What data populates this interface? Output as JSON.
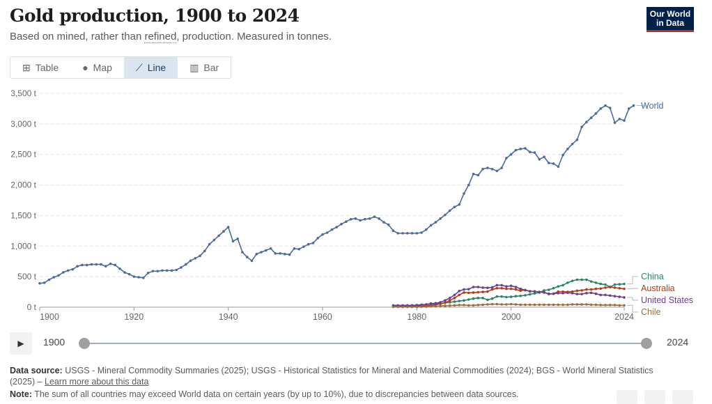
{
  "header": {
    "title": "Gold production, 1900 to 2024",
    "subtitle_pre": "Based on mined, rather than ",
    "subtitle_link": "refined",
    "subtitle_post": ", production. Measured in tonnes.",
    "logo": "Our World in Data"
  },
  "tabs": [
    {
      "label": "Table",
      "icon": "table-icon"
    },
    {
      "label": "Map",
      "icon": "globe-icon"
    },
    {
      "label": "Line",
      "icon": "line-chart-icon",
      "active": true
    },
    {
      "label": "Bar",
      "icon": "bar-chart-icon"
    }
  ],
  "timeline": {
    "start": "1900",
    "end": "2024",
    "start_value": 1900,
    "end_value": 2024
  },
  "footer": {
    "source_label": "Data source:",
    "source_text": " USGS - Mineral Commodity Summaries (2025); USGS - Historical Statistics for Mineral and Material Commodities (2024); BGS - World Mineral Statistics (2025) – ",
    "learn_more": "Learn more about this data",
    "note_label": "Note:",
    "note_text": " The sum of all countries may exceed World data on certain years (by up to 10%), due to discrepancies between data sources."
  },
  "chart_data": {
    "type": "line",
    "title": "Gold production, 1900 to 2024",
    "ylabel": "tonnes",
    "ylim": [
      0,
      3500
    ],
    "xlim": [
      1900,
      2024
    ],
    "yticks": [
      {
        "v": 0,
        "label": "0 t"
      },
      {
        "v": 500,
        "label": "500 t"
      },
      {
        "v": 1000,
        "label": "1,000 t"
      },
      {
        "v": 1500,
        "label": "1,500 t"
      },
      {
        "v": 2000,
        "label": "2,000 t"
      },
      {
        "v": 2500,
        "label": "2,500 t"
      },
      {
        "v": 3000,
        "label": "3,000 t"
      },
      {
        "v": 3500,
        "label": "3,500 t"
      }
    ],
    "xticks": [
      {
        "v": 1900,
        "label": "1900"
      },
      {
        "v": 1920,
        "label": "1920"
      },
      {
        "v": 1940,
        "label": "1940"
      },
      {
        "v": 1960,
        "label": "1960"
      },
      {
        "v": 1980,
        "label": "1980"
      },
      {
        "v": 2000,
        "label": "2000"
      },
      {
        "v": 2024,
        "label": "2024"
      }
    ],
    "series": [
      {
        "name": "World",
        "color": "#4c6a9c",
        "start": 1900,
        "values": [
          390,
          400,
          450,
          490,
          520,
          570,
          600,
          620,
          670,
          690,
          690,
          700,
          700,
          700,
          670,
          710,
          690,
          630,
          570,
          540,
          500,
          490,
          480,
          560,
          590,
          590,
          600,
          600,
          600,
          610,
          650,
          700,
          760,
          800,
          840,
          920,
          1030,
          1100,
          1170,
          1240,
          1310,
          1080,
          1120,
          900,
          820,
          760,
          870,
          900,
          930,
          960,
          880,
          880,
          870,
          860,
          960,
          950,
          990,
          1030,
          1050,
          1130,
          1190,
          1220,
          1270,
          1310,
          1360,
          1400,
          1440,
          1450,
          1420,
          1440,
          1450,
          1480,
          1450,
          1390,
          1350,
          1250,
          1210,
          1210,
          1210,
          1210,
          1210,
          1220,
          1270,
          1340,
          1390,
          1450,
          1510,
          1580,
          1640,
          1680,
          1860,
          2000,
          2180,
          2160,
          2260,
          2280,
          2260,
          2230,
          2280,
          2440,
          2500,
          2570,
          2590,
          2600,
          2540,
          2530,
          2420,
          2460,
          2360,
          2350,
          2300,
          2490,
          2590,
          2670,
          2740,
          2950,
          3030,
          3100,
          3170,
          3250,
          3300,
          3260,
          3020,
          3080,
          3055,
          3250,
          3300
        ]
      },
      {
        "name": "China",
        "color": "#2c8465",
        "start": 1975,
        "values": [
          15,
          18,
          20,
          25,
          30,
          35,
          40,
          45,
          50,
          55,
          60,
          70,
          80,
          90,
          100,
          110,
          125,
          140,
          150,
          150,
          120,
          140,
          175,
          175,
          165,
          170,
          180,
          185,
          195,
          210,
          225,
          240,
          275,
          285,
          310,
          340,
          360,
          400,
          430,
          450,
          450,
          450,
          420,
          400,
          380,
          370,
          330,
          370,
          375,
          380
        ]
      },
      {
        "name": "Australia",
        "color": "#b73b12",
        "start": 1975,
        "values": [
          18,
          18,
          20,
          20,
          20,
          20,
          22,
          25,
          30,
          40,
          55,
          75,
          110,
          150,
          200,
          240,
          235,
          240,
          245,
          250,
          255,
          290,
          310,
          310,
          300,
          300,
          290,
          270,
          280,
          260,
          260,
          245,
          245,
          215,
          220,
          255,
          255,
          250,
          255,
          270,
          275,
          290,
          290,
          300,
          305,
          320,
          330,
          320,
          310,
          300
        ]
      },
      {
        "name": "United States",
        "color": "#6d3e91",
        "start": 1975,
        "values": [
          30,
          30,
          30,
          30,
          30,
          30,
          40,
          45,
          60,
          65,
          80,
          110,
          150,
          200,
          265,
          290,
          295,
          330,
          330,
          320,
          317,
          325,
          360,
          360,
          340,
          350,
          330,
          300,
          280,
          260,
          255,
          250,
          240,
          220,
          220,
          230,
          230,
          235,
          230,
          215,
          215,
          230,
          235,
          220,
          200,
          200,
          190,
          180,
          170,
          160
        ]
      },
      {
        "name": "Chile",
        "color": "#996d39",
        "start": 1975,
        "values": [
          5,
          5,
          5,
          5,
          5,
          5,
          7,
          10,
          15,
          17,
          20,
          22,
          25,
          30,
          35,
          35,
          30,
          30,
          35,
          40,
          45,
          50,
          50,
          45,
          45,
          50,
          45,
          40,
          40,
          40,
          40,
          40,
          40,
          40,
          40,
          40,
          40,
          40,
          45,
          45,
          45,
          45,
          40,
          40,
          35,
          35,
          35,
          35,
          30,
          30
        ]
      }
    ]
  }
}
